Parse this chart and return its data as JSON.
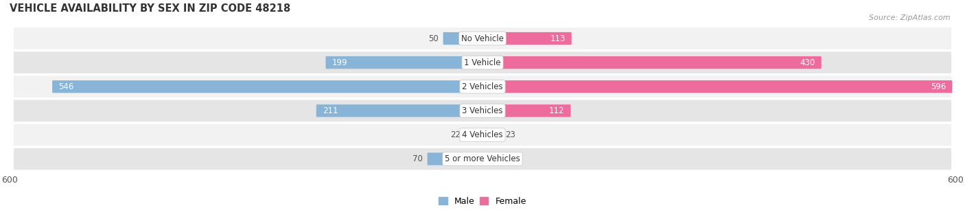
{
  "title": "VEHICLE AVAILABILITY BY SEX IN ZIP CODE 48218",
  "source": "Source: ZipAtlas.com",
  "categories": [
    "No Vehicle",
    "1 Vehicle",
    "2 Vehicles",
    "3 Vehicles",
    "4 Vehicles",
    "5 or more Vehicles"
  ],
  "male_values": [
    50,
    199,
    546,
    211,
    22,
    70
  ],
  "female_values": [
    113,
    430,
    596,
    112,
    23,
    0
  ],
  "male_color": "#88b4d8",
  "female_color": "#ee6b9e",
  "male_color_light": "#b8d4ea",
  "female_color_light": "#f4a0c8",
  "male_label": "Male",
  "female_label": "Female",
  "xlim": [
    -600,
    600
  ],
  "xticks": [
    -600,
    600
  ],
  "xticklabels": [
    "600",
    "600"
  ],
  "bar_height": 0.52,
  "row_bg_light": "#f2f2f2",
  "row_bg_dark": "#e5e5e5",
  "title_fontsize": 10.5,
  "source_fontsize": 8,
  "label_fontsize": 9,
  "value_fontsize": 8.5,
  "category_label_fontsize": 8.5,
  "large_threshold": 80
}
